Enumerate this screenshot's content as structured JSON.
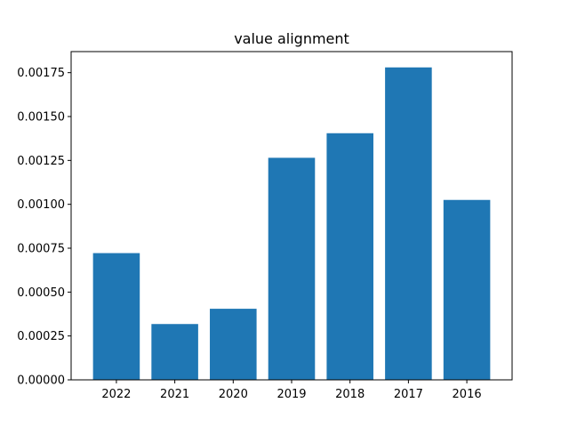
{
  "chart_data": {
    "type": "bar",
    "title": "value alignment",
    "xlabel": "",
    "ylabel": "",
    "categories": [
      "2022",
      "2021",
      "2020",
      "2019",
      "2018",
      "2017",
      "2016"
    ],
    "values": [
      0.000722,
      0.000318,
      0.000405,
      0.001265,
      0.001405,
      0.00178,
      0.001025
    ],
    "ylim": [
      0,
      0.00187
    ],
    "yticks": [
      0.0,
      0.00025,
      0.0005,
      0.00075,
      0.001,
      0.00125,
      0.0015,
      0.00175
    ],
    "ytick_labels": [
      "0.00000",
      "0.00025",
      "0.00050",
      "0.00075",
      "0.00100",
      "0.00125",
      "0.00150",
      "0.00175"
    ],
    "bar_color": "#1f77b4",
    "grid": false,
    "legend": "none"
  }
}
